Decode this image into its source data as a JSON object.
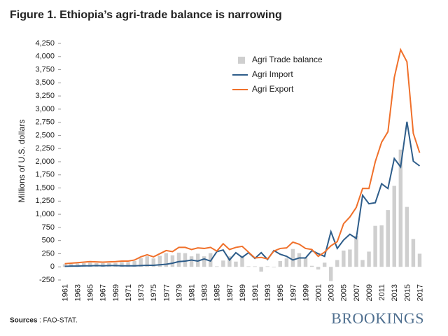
{
  "chart_data": {
    "type": "bar-line",
    "title": "Figure 1. Ethiopia’s agri-trade balance is narrowing",
    "y_label": "Millions of U.S. dollars",
    "sources_label": "Sources",
    "sources_text": ": FAO-STAT.",
    "brand": "BROOKINGS",
    "legend": "top-center",
    "categories": [
      "1961",
      null,
      "1963",
      null,
      "1965",
      null,
      "1967",
      null,
      "1969",
      null,
      "1971",
      null,
      "1973",
      null,
      "1975",
      null,
      "1977",
      null,
      "1979",
      null,
      "1981",
      null,
      "1983",
      null,
      "1985",
      null,
      "1987",
      null,
      "1989",
      null,
      "1991",
      null,
      "1993",
      null,
      "1995",
      null,
      "1997",
      null,
      "1999",
      null,
      "2001",
      null,
      "2003",
      null,
      "2005",
      null,
      "2007",
      null,
      "2009",
      null,
      "2011",
      null,
      "2013",
      null,
      "2015",
      null,
      "2017"
    ],
    "ylim": [
      -250,
      4250
    ],
    "yticks": [
      -250,
      0,
      250,
      500,
      750,
      {
        "value": 1000,
        "label": "1,000"
      },
      {
        "value": 1250,
        "label": "1,250"
      },
      {
        "value": 1500,
        "label": "1,500"
      },
      {
        "value": 1750,
        "label": "1,750"
      },
      {
        "value": 2000,
        "label": "2,000"
      },
      {
        "value": 2250,
        "label": "2,250"
      },
      {
        "value": 2500,
        "label": "2,500"
      },
      {
        "value": 2750,
        "label": "2,750"
      },
      {
        "value": 3000,
        "label": "3,000"
      },
      {
        "value": 3250,
        "label": "3,250"
      },
      {
        "value": 3500,
        "label": "3,500"
      },
      {
        "value": 3750,
        "label": "3,750"
      },
      {
        "value": 4000,
        "label": "4,000"
      },
      {
        "value": 4250,
        "label": "4,250"
      }
    ],
    "series": [
      {
        "name": "Agri Trade balance",
        "kind": "bar",
        "color": "#cfcfcf",
        "values": [
          50,
          55,
          65,
          70,
          80,
          70,
          70,
          70,
          75,
          90,
          90,
          110,
          165,
          200,
          160,
          210,
          260,
          220,
          270,
          260,
          200,
          250,
          200,
          260,
          10,
          120,
          200,
          100,
          210,
          10,
          10,
          -90,
          10,
          -10,
          110,
          160,
          340,
          260,
          180,
          20,
          -50,
          80,
          -270,
          130,
          310,
          330,
          590,
          130,
          290,
          780,
          790,
          1080,
          1540,
          2230,
          1140,
          530,
          250
        ]
      },
      {
        "name": "Agri Import",
        "kind": "line",
        "color": "#2e5d8a",
        "values": [
          10,
          15,
          15,
          20,
          20,
          25,
          20,
          25,
          25,
          20,
          20,
          20,
          25,
          30,
          30,
          40,
          50,
          70,
          100,
          110,
          130,
          110,
          150,
          110,
          290,
          320,
          130,
          270,
          180,
          270,
          160,
          270,
          140,
          310,
          240,
          200,
          130,
          170,
          170,
          310,
          250,
          200,
          670,
          350,
          510,
          620,
          540,
          1360,
          1200,
          1220,
          1580,
          1490,
          2060,
          1900,
          2760,
          2010,
          1920
        ]
      },
      {
        "name": "Agri Export",
        "kind": "line",
        "color": "#f0702a",
        "values": [
          60,
          70,
          80,
          90,
          100,
          95,
          90,
          95,
          100,
          110,
          110,
          130,
          190,
          230,
          190,
          250,
          310,
          290,
          370,
          370,
          330,
          360,
          350,
          370,
          300,
          440,
          330,
          370,
          390,
          280,
          170,
          180,
          150,
          300,
          350,
          360,
          470,
          430,
          350,
          330,
          200,
          280,
          400,
          480,
          820,
          950,
          1130,
          1490,
          1490,
          2000,
          2370,
          2570,
          3600,
          4130,
          3900,
          2540,
          2170
        ]
      }
    ]
  }
}
